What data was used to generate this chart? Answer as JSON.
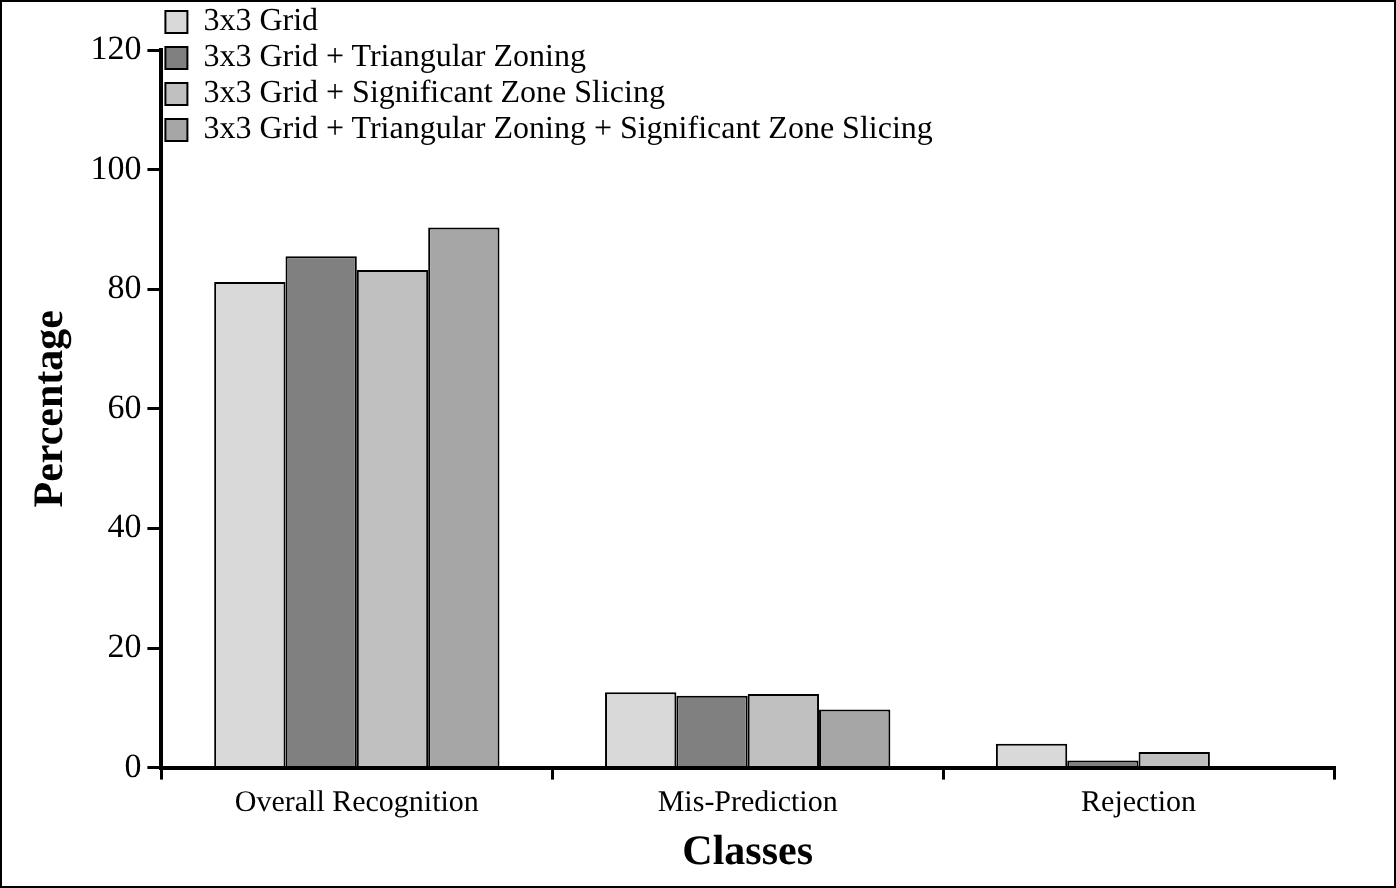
{
  "chart_data": {
    "type": "bar",
    "xlabel": "Classes",
    "ylabel": "Percentage",
    "categories": [
      "Overall Recognition",
      "Mis-Prediction",
      "Rejection"
    ],
    "series": [
      {
        "name": "3x3 Grid",
        "color": "#d9d9d9",
        "values": [
          81.2,
          12.6,
          4.0
        ]
      },
      {
        "name": "3x3 Grid + Triangular Zoning",
        "color": "#808080",
        "values": [
          85.5,
          12.0,
          1.2
        ]
      },
      {
        "name": "3x3 Grid + Significant Zone Slicing",
        "color": "#c0c0c0",
        "values": [
          83.2,
          12.3,
          2.6
        ]
      },
      {
        "name": "3x3 Grid + Triangular Zoning + Significant Zone Slicing",
        "color": "#a6a6a6",
        "values": [
          90.3,
          9.7,
          0
        ]
      }
    ],
    "ylim": [
      0,
      120
    ],
    "yticks": [
      0,
      20,
      40,
      60,
      80,
      100,
      120
    ],
    "grid": false,
    "legend": "top left"
  }
}
